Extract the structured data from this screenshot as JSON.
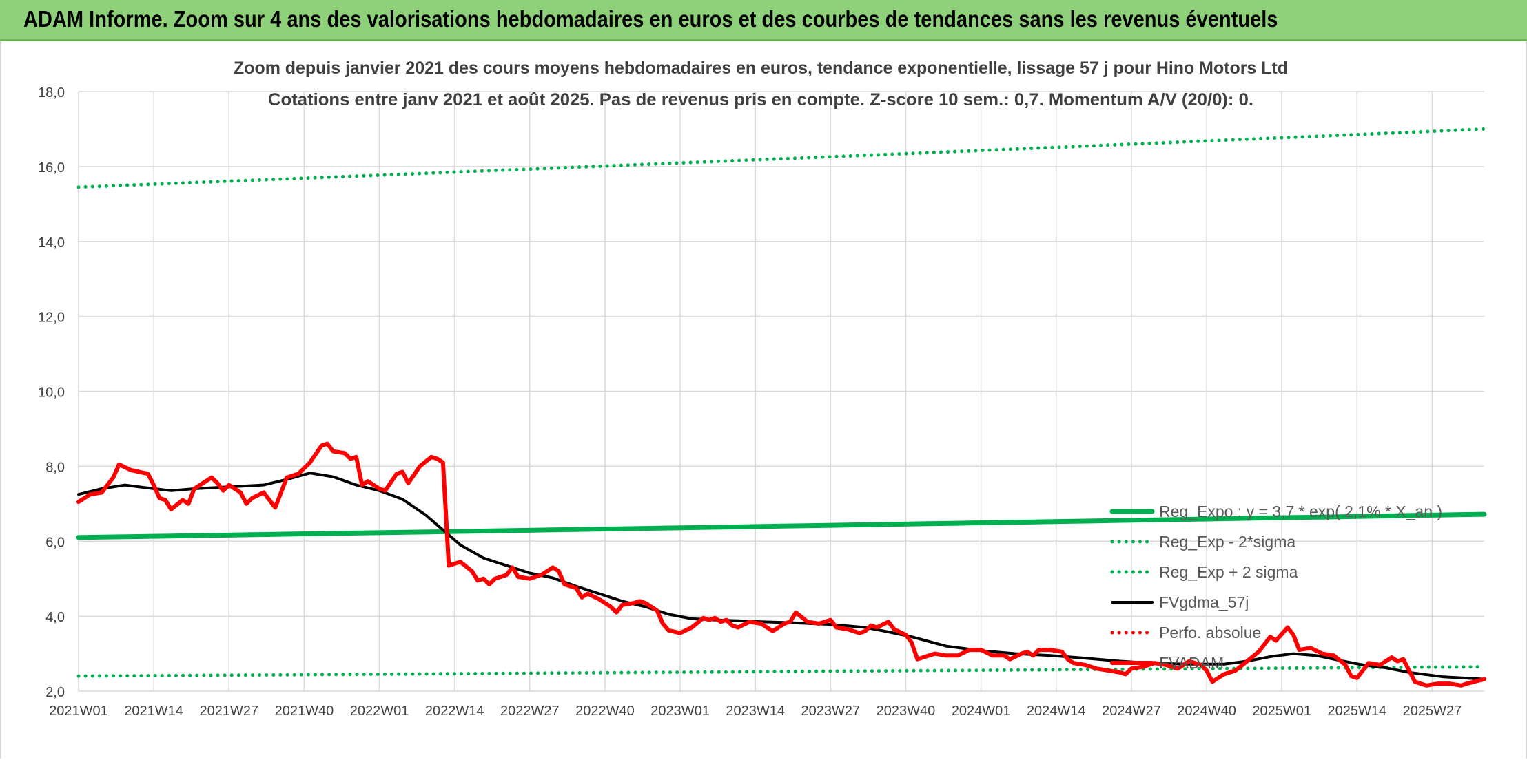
{
  "header": {
    "banner_title": "ADAM Informe. Zoom sur 4 ans des valorisations hebdomadaires en euros et des courbes de tendances sans les revenus éventuels"
  },
  "colors": {
    "banner_bg": "#8fd17a",
    "trend_green": "#00b050",
    "price_red": "#ff0000",
    "smooth_black": "#000000",
    "grid": "#d9d9d9",
    "axis_text": "#404040",
    "title_text": "#404040"
  },
  "chart_data": {
    "type": "line",
    "title": "Zoom depuis janvier 2021 des cours moyens hebdomadaires en euros, tendance exponentielle, lissage 57 j pour Hino Motors Ltd",
    "subtitle": "Cotations entre janv 2021 et août 2025. Pas de revenus pris en compte. Z-score 10 sem.: 0,7. Momentum A/V (20/0): 0.",
    "xlabel": "",
    "ylabel": "",
    "ylim": [
      2.0,
      18.0
    ],
    "yticks": [
      "2,0",
      "4,0",
      "6,0",
      "8,0",
      "10,0",
      "12,0",
      "14,0",
      "16,0",
      "18,0"
    ],
    "x_range_weeks": [
      0,
      243
    ],
    "xticks": [
      {
        "label": "2021W01",
        "week": 0
      },
      {
        "label": "2021W14",
        "week": 13
      },
      {
        "label": "2021W27",
        "week": 26
      },
      {
        "label": "2021W40",
        "week": 39
      },
      {
        "label": "2022W01",
        "week": 52
      },
      {
        "label": "2022W14",
        "week": 65
      },
      {
        "label": "2022W27",
        "week": 78
      },
      {
        "label": "2022W40",
        "week": 91
      },
      {
        "label": "2023W01",
        "week": 104
      },
      {
        "label": "2023W14",
        "week": 117
      },
      {
        "label": "2023W27",
        "week": 130
      },
      {
        "label": "2023W40",
        "week": 143
      },
      {
        "label": "2024W01",
        "week": 156
      },
      {
        "label": "2024W14",
        "week": 169
      },
      {
        "label": "2024W27",
        "week": 182
      },
      {
        "label": "2024W40",
        "week": 195
      },
      {
        "label": "2025W01",
        "week": 208
      },
      {
        "label": "2025W14",
        "week": 221
      },
      {
        "label": "2025W27",
        "week": 234
      }
    ],
    "grid": true,
    "legend_position": "right",
    "series": [
      {
        "name": "Reg_Expo : y = 3,7 * exp( 2,1% * X_an )",
        "style": "solid-thick",
        "color": "#00b050",
        "points": [
          [
            0,
            6.1
          ],
          [
            243,
            6.72
          ]
        ]
      },
      {
        "name": "Reg_Exp - 2*sigma",
        "style": "dotted",
        "color": "#00b050",
        "points": [
          [
            0,
            2.4
          ],
          [
            243,
            2.65
          ]
        ]
      },
      {
        "name": "Reg_Exp + 2 sigma",
        "style": "dotted",
        "color": "#00b050",
        "points": [
          [
            0,
            15.45
          ],
          [
            243,
            17.0
          ]
        ]
      },
      {
        "name": "FVgdma_57j",
        "style": "solid",
        "color": "#000000",
        "points": [
          [
            0,
            7.25
          ],
          [
            4,
            7.4
          ],
          [
            8,
            7.5
          ],
          [
            12,
            7.42
          ],
          [
            16,
            7.35
          ],
          [
            20,
            7.4
          ],
          [
            26,
            7.45
          ],
          [
            32,
            7.5
          ],
          [
            36,
            7.65
          ],
          [
            40,
            7.82
          ],
          [
            44,
            7.72
          ],
          [
            48,
            7.5
          ],
          [
            52,
            7.35
          ],
          [
            56,
            7.12
          ],
          [
            60,
            6.7
          ],
          [
            63,
            6.3
          ],
          [
            66,
            5.9
          ],
          [
            70,
            5.55
          ],
          [
            74,
            5.35
          ],
          [
            78,
            5.15
          ],
          [
            82,
            5.02
          ],
          [
            86,
            4.8
          ],
          [
            90,
            4.6
          ],
          [
            94,
            4.4
          ],
          [
            98,
            4.25
          ],
          [
            102,
            4.05
          ],
          [
            106,
            3.93
          ],
          [
            110,
            3.9
          ],
          [
            114,
            3.88
          ],
          [
            118,
            3.85
          ],
          [
            124,
            3.82
          ],
          [
            130,
            3.78
          ],
          [
            136,
            3.7
          ],
          [
            140,
            3.58
          ],
          [
            144,
            3.45
          ],
          [
            150,
            3.2
          ],
          [
            156,
            3.08
          ],
          [
            162,
            3.0
          ],
          [
            168,
            2.95
          ],
          [
            174,
            2.88
          ],
          [
            180,
            2.8
          ],
          [
            186,
            2.74
          ],
          [
            192,
            2.72
          ],
          [
            198,
            2.72
          ],
          [
            202,
            2.8
          ],
          [
            206,
            2.92
          ],
          [
            210,
            3.0
          ],
          [
            214,
            2.95
          ],
          [
            218,
            2.82
          ],
          [
            222,
            2.7
          ],
          [
            226,
            2.62
          ],
          [
            230,
            2.5
          ],
          [
            236,
            2.38
          ],
          [
            243,
            2.32
          ]
        ]
      },
      {
        "name": "Perfo. absolue",
        "style": "dotted",
        "color": "#ff0000",
        "points": []
      },
      {
        "name": "FVADAM",
        "style": "solid-thick",
        "color": "#ff0000",
        "points": [
          [
            0,
            7.05
          ],
          [
            2,
            7.25
          ],
          [
            4,
            7.3
          ],
          [
            6,
            7.7
          ],
          [
            7,
            8.05
          ],
          [
            9,
            7.9
          ],
          [
            12,
            7.8
          ],
          [
            13,
            7.5
          ],
          [
            14,
            7.15
          ],
          [
            15,
            7.1
          ],
          [
            16,
            6.85
          ],
          [
            18,
            7.1
          ],
          [
            19,
            7.0
          ],
          [
            20,
            7.4
          ],
          [
            23,
            7.7
          ],
          [
            24,
            7.55
          ],
          [
            25,
            7.35
          ],
          [
            26,
            7.5
          ],
          [
            28,
            7.3
          ],
          [
            29,
            7.0
          ],
          [
            30,
            7.15
          ],
          [
            32,
            7.3
          ],
          [
            34,
            6.9
          ],
          [
            36,
            7.7
          ],
          [
            38,
            7.8
          ],
          [
            40,
            8.1
          ],
          [
            42,
            8.55
          ],
          [
            43,
            8.6
          ],
          [
            44,
            8.4
          ],
          [
            46,
            8.35
          ],
          [
            47,
            8.2
          ],
          [
            48,
            8.25
          ],
          [
            49,
            7.5
          ],
          [
            50,
            7.6
          ],
          [
            52,
            7.4
          ],
          [
            53,
            7.35
          ],
          [
            55,
            7.8
          ],
          [
            56,
            7.85
          ],
          [
            57,
            7.55
          ],
          [
            59,
            8.0
          ],
          [
            61,
            8.25
          ],
          [
            62,
            8.2
          ],
          [
            63,
            8.1
          ],
          [
            64,
            5.35
          ],
          [
            66,
            5.45
          ],
          [
            68,
            5.2
          ],
          [
            69,
            4.95
          ],
          [
            70,
            5.0
          ],
          [
            71,
            4.85
          ],
          [
            72,
            5.0
          ],
          [
            74,
            5.1
          ],
          [
            75,
            5.3
          ],
          [
            76,
            5.05
          ],
          [
            78,
            5.0
          ],
          [
            80,
            5.1
          ],
          [
            82,
            5.3
          ],
          [
            83,
            5.2
          ],
          [
            84,
            4.85
          ],
          [
            86,
            4.75
          ],
          [
            87,
            4.5
          ],
          [
            88,
            4.6
          ],
          [
            90,
            4.45
          ],
          [
            92,
            4.25
          ],
          [
            93,
            4.1
          ],
          [
            94,
            4.3
          ],
          [
            96,
            4.35
          ],
          [
            97,
            4.4
          ],
          [
            98,
            4.35
          ],
          [
            100,
            4.15
          ],
          [
            101,
            3.8
          ],
          [
            102,
            3.62
          ],
          [
            104,
            3.55
          ],
          [
            106,
            3.7
          ],
          [
            108,
            3.95
          ],
          [
            109,
            3.9
          ],
          [
            110,
            3.95
          ],
          [
            111,
            3.85
          ],
          [
            112,
            3.9
          ],
          [
            113,
            3.75
          ],
          [
            114,
            3.7
          ],
          [
            116,
            3.85
          ],
          [
            118,
            3.8
          ],
          [
            120,
            3.6
          ],
          [
            122,
            3.8
          ],
          [
            123,
            3.85
          ],
          [
            124,
            4.1
          ],
          [
            126,
            3.85
          ],
          [
            128,
            3.8
          ],
          [
            130,
            3.9
          ],
          [
            131,
            3.7
          ],
          [
            133,
            3.65
          ],
          [
            135,
            3.55
          ],
          [
            136,
            3.6
          ],
          [
            137,
            3.75
          ],
          [
            138,
            3.7
          ],
          [
            140,
            3.85
          ],
          [
            141,
            3.65
          ],
          [
            143,
            3.5
          ],
          [
            144,
            3.3
          ],
          [
            145,
            2.85
          ],
          [
            147,
            2.95
          ],
          [
            148,
            3.0
          ],
          [
            150,
            2.95
          ],
          [
            152,
            2.95
          ],
          [
            154,
            3.1
          ],
          [
            156,
            3.1
          ],
          [
            158,
            2.95
          ],
          [
            160,
            2.95
          ],
          [
            161,
            2.85
          ],
          [
            163,
            3.0
          ],
          [
            164,
            3.05
          ],
          [
            165,
            2.95
          ],
          [
            166,
            3.1
          ],
          [
            168,
            3.1
          ],
          [
            170,
            3.05
          ],
          [
            171,
            2.85
          ],
          [
            172,
            2.75
          ],
          [
            174,
            2.7
          ],
          [
            176,
            2.6
          ],
          [
            178,
            2.55
          ],
          [
            180,
            2.5
          ],
          [
            181,
            2.45
          ],
          [
            182,
            2.6
          ],
          [
            184,
            2.65
          ],
          [
            186,
            2.75
          ],
          [
            188,
            2.7
          ],
          [
            190,
            2.6
          ],
          [
            192,
            2.8
          ],
          [
            194,
            2.7
          ],
          [
            195,
            2.55
          ],
          [
            196,
            2.25
          ],
          [
            198,
            2.45
          ],
          [
            200,
            2.55
          ],
          [
            202,
            2.8
          ],
          [
            204,
            3.05
          ],
          [
            206,
            3.45
          ],
          [
            207,
            3.35
          ],
          [
            209,
            3.7
          ],
          [
            210,
            3.5
          ],
          [
            211,
            3.1
          ],
          [
            213,
            3.15
          ],
          [
            215,
            3.0
          ],
          [
            217,
            2.95
          ],
          [
            219,
            2.7
          ],
          [
            220,
            2.4
          ],
          [
            221,
            2.35
          ],
          [
            223,
            2.75
          ],
          [
            225,
            2.7
          ],
          [
            227,
            2.9
          ],
          [
            228,
            2.8
          ],
          [
            229,
            2.85
          ],
          [
            230,
            2.55
          ],
          [
            231,
            2.25
          ],
          [
            233,
            2.15
          ],
          [
            235,
            2.2
          ],
          [
            237,
            2.2
          ],
          [
            239,
            2.15
          ],
          [
            240,
            2.2
          ],
          [
            243,
            2.32
          ]
        ]
      }
    ]
  }
}
